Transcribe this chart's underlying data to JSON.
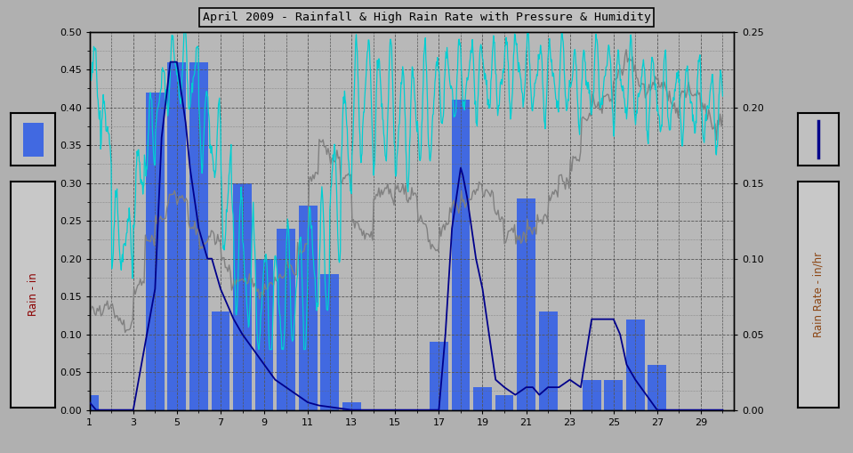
{
  "title": "April 2009 - Rainfall & High Rain Rate with Pressure & Humidity",
  "background_color": "#b0b0b0",
  "plot_bg_color": "#b8b8b8",
  "left_ylim": [
    0.0,
    0.5
  ],
  "right_ylim": [
    0.0,
    0.25
  ],
  "xlim": [
    1,
    30.5
  ],
  "xticks": [
    1,
    3,
    5,
    7,
    9,
    11,
    13,
    15,
    17,
    19,
    21,
    23,
    25,
    27,
    29
  ],
  "left_yticks": [
    0.0,
    0.05,
    0.1,
    0.15,
    0.2,
    0.25,
    0.3,
    0.35,
    0.4,
    0.45,
    0.5
  ],
  "right_yticks": [
    0.0,
    0.05,
    0.1,
    0.15,
    0.2,
    0.25
  ],
  "left_ylabel": "Rain - in",
  "right_ylabel": "Rain Rate - in/hr",
  "bar_color": "#4169e1",
  "rain_rate_color": "#00008b",
  "humidity_color": "#00ced1",
  "pressure_color": "#808080",
  "bar_data_x": [
    1,
    2,
    3,
    4,
    5,
    6,
    7,
    8,
    9,
    10,
    11,
    12,
    13,
    14,
    15,
    16,
    17,
    18,
    19,
    20,
    21,
    22,
    23,
    24,
    25,
    26,
    27,
    28,
    29,
    30
  ],
  "bar_data_y": [
    0.02,
    0.0,
    0.0,
    0.42,
    0.46,
    0.46,
    0.13,
    0.3,
    0.2,
    0.24,
    0.27,
    0.18,
    0.01,
    0.0,
    0.0,
    0.0,
    0.09,
    0.41,
    0.03,
    0.02,
    0.28,
    0.13,
    0.0,
    0.04,
    0.04,
    0.12,
    0.06,
    0.0,
    0.0,
    0.0
  ],
  "rain_rate_x": [
    1.0,
    1.3,
    2.0,
    3.0,
    4.0,
    4.3,
    4.7,
    5.0,
    5.1,
    5.2,
    5.4,
    5.6,
    5.8,
    6.0,
    6.2,
    6.4,
    6.6,
    6.8,
    7.0,
    7.3,
    7.6,
    8.0,
    8.5,
    9.0,
    9.5,
    10.0,
    10.5,
    11.0,
    11.5,
    12.0,
    12.5,
    13.0,
    13.5,
    14.0,
    15.0,
    16.0,
    17.0,
    17.3,
    17.6,
    17.9,
    18.0,
    18.1,
    18.3,
    18.5,
    18.7,
    19.0,
    19.3,
    19.6,
    20.0,
    20.5,
    21.0,
    21.3,
    21.6,
    22.0,
    22.5,
    23.0,
    23.5,
    24.0,
    24.5,
    25.0,
    25.3,
    25.6,
    26.0,
    26.5,
    27.0,
    28.0,
    29.0,
    30.0
  ],
  "rain_rate_y": [
    0.005,
    0.0,
    0.0,
    0.0,
    0.08,
    0.18,
    0.23,
    0.23,
    0.22,
    0.21,
    0.19,
    0.16,
    0.14,
    0.12,
    0.11,
    0.1,
    0.1,
    0.09,
    0.08,
    0.07,
    0.06,
    0.05,
    0.04,
    0.03,
    0.02,
    0.015,
    0.01,
    0.005,
    0.003,
    0.002,
    0.001,
    0.0,
    0.0,
    0.0,
    0.0,
    0.0,
    0.0,
    0.05,
    0.12,
    0.15,
    0.16,
    0.155,
    0.14,
    0.12,
    0.1,
    0.08,
    0.05,
    0.02,
    0.015,
    0.01,
    0.015,
    0.015,
    0.01,
    0.015,
    0.015,
    0.02,
    0.015,
    0.06,
    0.06,
    0.06,
    0.05,
    0.03,
    0.02,
    0.01,
    0.0,
    0.0,
    0.0,
    0.0
  ]
}
